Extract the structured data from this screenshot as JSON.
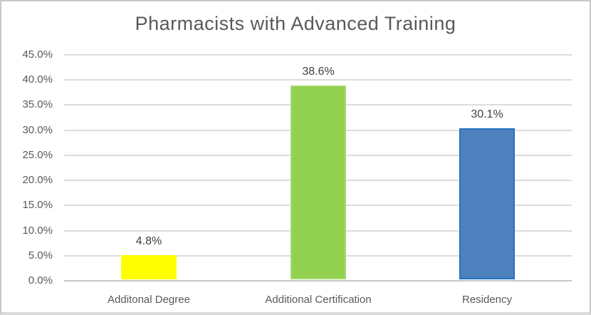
{
  "chart_data": {
    "type": "bar",
    "title": "Pharmacists with Advanced Training",
    "categories": [
      "Additonal Degree",
      "Additional Certification",
      "Residency"
    ],
    "values": [
      4.8,
      38.6,
      30.1
    ],
    "data_labels": [
      "4.8%",
      "38.6%",
      "30.1%"
    ],
    "bar_colors": [
      "#FFFF00",
      "#92D050",
      "#4E81BD"
    ],
    "bar_border_colors": [
      "#FFFF00",
      "#A6DA70",
      "#2173C2"
    ],
    "xlabel": "",
    "ylabel": "",
    "ylim": [
      0,
      45
    ],
    "grid": true,
    "legend": "none",
    "y_ticks": [
      {
        "value": 45,
        "label": "45.0%"
      },
      {
        "value": 40,
        "label": "40.0%"
      },
      {
        "value": 35,
        "label": "35.0%"
      },
      {
        "value": 30,
        "label": "30.0%"
      },
      {
        "value": 25,
        "label": "25.0%"
      },
      {
        "value": 20,
        "label": "20.0%"
      },
      {
        "value": 15,
        "label": "15.0%"
      },
      {
        "value": 10,
        "label": "10.0%"
      },
      {
        "value": 5,
        "label": "5.0%"
      },
      {
        "value": 0,
        "label": "0.0%"
      }
    ],
    "style": {
      "title_color": "#595959",
      "tick_label_color": "#595959",
      "category_label_color": "#595959",
      "data_label_color": "#404040",
      "gridline_color": "#DCDCDC",
      "axis_line_color": "#C6C6C6",
      "background": "#FFFFFF",
      "frame_border_color": "#C8C8C8"
    }
  }
}
